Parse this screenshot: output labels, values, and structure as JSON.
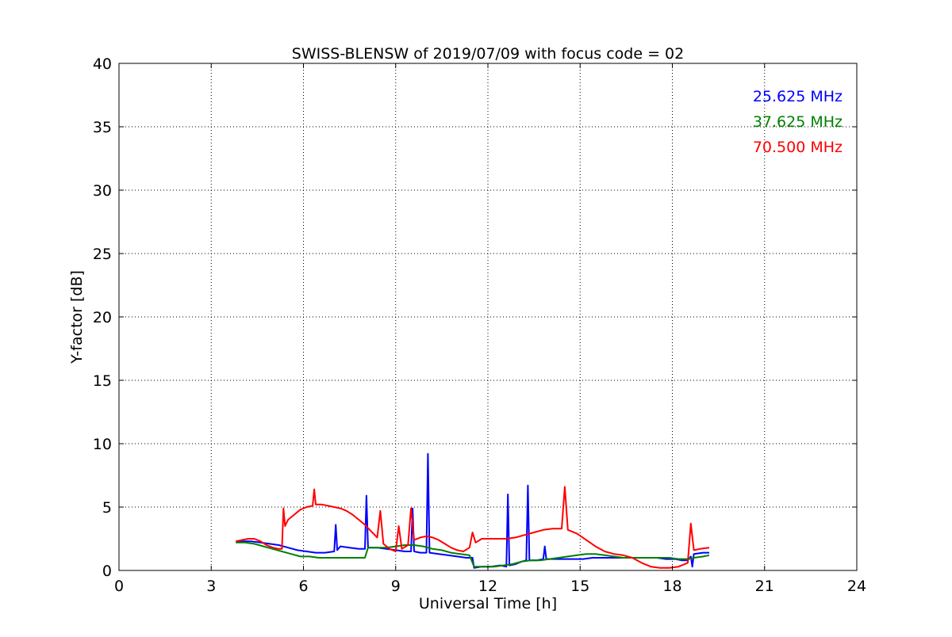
{
  "chart_data": {
    "type": "line",
    "title": "SWISS-BLENSW of 2019/07/09 with focus code = 02",
    "xlabel": "Universal Time [h]",
    "ylabel": "Y-factor [dB]",
    "xlim": [
      0,
      24
    ],
    "ylim": [
      0,
      40
    ],
    "xticks": [
      0,
      3,
      6,
      9,
      12,
      15,
      18,
      21,
      24
    ],
    "yticks": [
      0,
      5,
      10,
      15,
      20,
      25,
      30,
      35,
      40
    ],
    "grid": true,
    "legend_position": "top-right",
    "series": [
      {
        "name": "25.625 MHz",
        "color": "#0000ff",
        "points": [
          [
            3.8,
            2.3
          ],
          [
            4.0,
            2.3
          ],
          [
            4.3,
            2.3
          ],
          [
            4.6,
            2.2
          ],
          [
            4.9,
            2.1
          ],
          [
            5.2,
            2.0
          ],
          [
            5.5,
            1.8
          ],
          [
            5.8,
            1.6
          ],
          [
            6.1,
            1.5
          ],
          [
            6.4,
            1.4
          ],
          [
            6.7,
            1.4
          ],
          [
            7.0,
            1.5
          ],
          [
            7.05,
            3.6
          ],
          [
            7.1,
            1.6
          ],
          [
            7.2,
            1.9
          ],
          [
            7.5,
            1.8
          ],
          [
            7.8,
            1.7
          ],
          [
            8.0,
            1.7
          ],
          [
            8.05,
            5.9
          ],
          [
            8.1,
            1.8
          ],
          [
            8.4,
            1.8
          ],
          [
            8.7,
            1.7
          ],
          [
            9.0,
            1.6
          ],
          [
            9.3,
            1.5
          ],
          [
            9.5,
            1.5
          ],
          [
            9.55,
            4.9
          ],
          [
            9.6,
            1.5
          ],
          [
            9.8,
            1.4
          ],
          [
            10.0,
            1.4
          ],
          [
            10.05,
            9.2
          ],
          [
            10.1,
            1.4
          ],
          [
            10.4,
            1.3
          ],
          [
            10.7,
            1.2
          ],
          [
            11.0,
            1.1
          ],
          [
            11.3,
            1.0
          ],
          [
            11.5,
            1.0
          ],
          [
            11.55,
            0.2
          ],
          [
            11.8,
            0.3
          ],
          [
            12.1,
            0.3
          ],
          [
            12.4,
            0.4
          ],
          [
            12.6,
            0.3
          ],
          [
            12.65,
            6.0
          ],
          [
            12.7,
            0.4
          ],
          [
            12.9,
            0.5
          ],
          [
            13.1,
            0.7
          ],
          [
            13.25,
            0.8
          ],
          [
            13.3,
            6.7
          ],
          [
            13.35,
            0.8
          ],
          [
            13.6,
            0.8
          ],
          [
            13.8,
            0.9
          ],
          [
            13.85,
            1.9
          ],
          [
            13.9,
            0.9
          ],
          [
            14.2,
            0.9
          ],
          [
            14.5,
            0.9
          ],
          [
            14.8,
            0.9
          ],
          [
            15.1,
            0.9
          ],
          [
            15.4,
            1.0
          ],
          [
            15.7,
            1.0
          ],
          [
            16.0,
            1.0
          ],
          [
            16.3,
            1.0
          ],
          [
            16.6,
            1.0
          ],
          [
            16.9,
            1.0
          ],
          [
            17.2,
            1.0
          ],
          [
            17.5,
            1.0
          ],
          [
            17.8,
            0.9
          ],
          [
            18.1,
            0.9
          ],
          [
            18.3,
            0.8
          ],
          [
            18.5,
            0.8
          ],
          [
            18.6,
            1.1
          ],
          [
            18.65,
            0.3
          ],
          [
            18.7,
            1.3
          ],
          [
            19.0,
            1.4
          ],
          [
            19.2,
            1.4
          ]
        ]
      },
      {
        "name": "37.625 MHz",
        "color": "#008000",
        "points": [
          [
            3.8,
            2.2
          ],
          [
            4.1,
            2.2
          ],
          [
            4.4,
            2.1
          ],
          [
            4.7,
            1.9
          ],
          [
            5.0,
            1.7
          ],
          [
            5.3,
            1.5
          ],
          [
            5.6,
            1.3
          ],
          [
            5.9,
            1.1
          ],
          [
            6.2,
            1.1
          ],
          [
            6.5,
            1.0
          ],
          [
            6.8,
            1.0
          ],
          [
            7.1,
            1.0
          ],
          [
            7.4,
            1.0
          ],
          [
            7.7,
            1.0
          ],
          [
            8.0,
            1.0
          ],
          [
            8.1,
            1.8
          ],
          [
            8.4,
            1.8
          ],
          [
            8.7,
            1.8
          ],
          [
            9.0,
            1.9
          ],
          [
            9.3,
            2.0
          ],
          [
            9.6,
            2.0
          ],
          [
            9.9,
            1.9
          ],
          [
            10.2,
            1.7
          ],
          [
            10.5,
            1.6
          ],
          [
            10.8,
            1.4
          ],
          [
            11.1,
            1.3
          ],
          [
            11.4,
            1.2
          ],
          [
            11.55,
            0.3
          ],
          [
            11.9,
            0.3
          ],
          [
            12.2,
            0.3
          ],
          [
            12.5,
            0.4
          ],
          [
            12.8,
            0.5
          ],
          [
            13.1,
            0.7
          ],
          [
            13.4,
            0.8
          ],
          [
            13.7,
            0.8
          ],
          [
            14.0,
            0.9
          ],
          [
            14.3,
            1.0
          ],
          [
            14.6,
            1.1
          ],
          [
            14.9,
            1.2
          ],
          [
            15.2,
            1.3
          ],
          [
            15.5,
            1.3
          ],
          [
            15.8,
            1.2
          ],
          [
            16.1,
            1.1
          ],
          [
            16.4,
            1.0
          ],
          [
            16.7,
            1.0
          ],
          [
            17.0,
            1.0
          ],
          [
            17.3,
            1.0
          ],
          [
            17.6,
            1.0
          ],
          [
            17.9,
            1.0
          ],
          [
            18.2,
            0.9
          ],
          [
            18.5,
            0.9
          ],
          [
            18.7,
            1.0
          ],
          [
            19.0,
            1.1
          ],
          [
            19.2,
            1.2
          ]
        ]
      },
      {
        "name": "70.500 MHz",
        "color": "#ff0000",
        "points": [
          [
            3.8,
            2.3
          ],
          [
            4.0,
            2.4
          ],
          [
            4.2,
            2.5
          ],
          [
            4.4,
            2.5
          ],
          [
            4.6,
            2.3
          ],
          [
            4.8,
            2.0
          ],
          [
            5.0,
            1.8
          ],
          [
            5.2,
            1.7
          ],
          [
            5.3,
            1.7
          ],
          [
            5.35,
            4.9
          ],
          [
            5.4,
            3.5
          ],
          [
            5.5,
            4.0
          ],
          [
            5.7,
            4.4
          ],
          [
            5.9,
            4.8
          ],
          [
            6.1,
            5.0
          ],
          [
            6.3,
            5.1
          ],
          [
            6.35,
            6.4
          ],
          [
            6.4,
            5.2
          ],
          [
            6.6,
            5.2
          ],
          [
            6.8,
            5.1
          ],
          [
            7.0,
            5.0
          ],
          [
            7.2,
            4.9
          ],
          [
            7.4,
            4.7
          ],
          [
            7.6,
            4.4
          ],
          [
            7.8,
            4.0
          ],
          [
            8.0,
            3.6
          ],
          [
            8.2,
            3.1
          ],
          [
            8.4,
            2.6
          ],
          [
            8.5,
            4.7
          ],
          [
            8.6,
            2.1
          ],
          [
            8.8,
            1.7
          ],
          [
            9.0,
            1.5
          ],
          [
            9.1,
            3.5
          ],
          [
            9.2,
            1.7
          ],
          [
            9.4,
            2.0
          ],
          [
            9.5,
            4.9
          ],
          [
            9.6,
            2.4
          ],
          [
            9.8,
            2.6
          ],
          [
            10.0,
            2.7
          ],
          [
            10.2,
            2.6
          ],
          [
            10.4,
            2.4
          ],
          [
            10.6,
            2.1
          ],
          [
            10.8,
            1.8
          ],
          [
            11.0,
            1.6
          ],
          [
            11.2,
            1.5
          ],
          [
            11.4,
            1.8
          ],
          [
            11.5,
            3.0
          ],
          [
            11.6,
            2.2
          ],
          [
            11.8,
            2.5
          ],
          [
            12.0,
            2.5
          ],
          [
            12.3,
            2.5
          ],
          [
            12.6,
            2.5
          ],
          [
            12.9,
            2.6
          ],
          [
            13.2,
            2.8
          ],
          [
            13.5,
            3.0
          ],
          [
            13.8,
            3.2
          ],
          [
            14.1,
            3.3
          ],
          [
            14.4,
            3.3
          ],
          [
            14.5,
            6.6
          ],
          [
            14.6,
            3.2
          ],
          [
            14.9,
            2.9
          ],
          [
            15.2,
            2.4
          ],
          [
            15.5,
            1.9
          ],
          [
            15.8,
            1.5
          ],
          [
            16.1,
            1.3
          ],
          [
            16.4,
            1.2
          ],
          [
            16.7,
            1.0
          ],
          [
            17.0,
            0.6
          ],
          [
            17.3,
            0.3
          ],
          [
            17.6,
            0.2
          ],
          [
            17.9,
            0.2
          ],
          [
            18.2,
            0.3
          ],
          [
            18.5,
            0.6
          ],
          [
            18.6,
            3.7
          ],
          [
            18.7,
            1.6
          ],
          [
            18.9,
            1.7
          ],
          [
            19.2,
            1.8
          ]
        ]
      }
    ]
  }
}
